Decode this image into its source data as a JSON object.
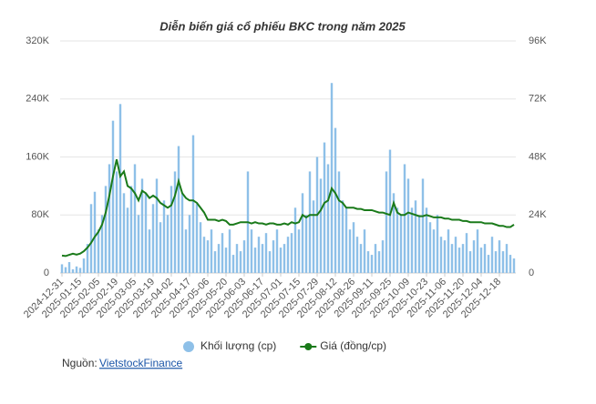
{
  "chart_data": {
    "type": "bar-line",
    "title": "Diễn biến giá cổ phiếu BKC trong năm 2025",
    "categories": [
      "2024-12-31",
      null,
      null,
      null,
      null,
      "2025-01-15",
      null,
      null,
      null,
      null,
      "2025-02-05",
      null,
      null,
      null,
      null,
      "2025-02-19",
      null,
      null,
      null,
      null,
      "2025-03-05",
      null,
      null,
      null,
      null,
      "2025-03-19",
      null,
      null,
      null,
      null,
      "2025-04-02",
      null,
      null,
      null,
      null,
      "2025-04-17",
      null,
      null,
      null,
      null,
      "2025-05-06",
      null,
      null,
      null,
      null,
      "2025-05-20",
      null,
      null,
      null,
      null,
      "2025-06-03",
      null,
      null,
      null,
      null,
      "2025-06-17",
      null,
      null,
      null,
      null,
      "2025-07-01",
      null,
      null,
      null,
      null,
      "2025-07-15",
      null,
      null,
      null,
      null,
      "2025-07-29",
      null,
      null,
      null,
      null,
      "2025-08-12",
      null,
      null,
      null,
      null,
      "2025-08-26",
      null,
      null,
      null,
      null,
      "2025-09-11",
      null,
      null,
      null,
      null,
      "2025-09-25",
      null,
      null,
      null,
      null,
      "2025-10-09",
      null,
      null,
      null,
      null,
      "2025-10-23",
      null,
      null,
      null,
      null,
      "2025-11-06",
      null,
      null,
      null,
      null,
      "2025-11-20",
      null,
      null,
      null,
      null,
      "2025-12-04",
      null,
      null,
      null,
      null,
      "2025-12-18",
      null,
      null,
      null,
      null
    ],
    "series": [
      {
        "name": "Khối lượng (cp)",
        "type": "bar",
        "color": "#8ec0e8",
        "values": [
          12000,
          8000,
          15000,
          5000,
          9000,
          7000,
          20000,
          40000,
          95000,
          112000,
          60000,
          80000,
          120000,
          150000,
          210000,
          140000,
          233000,
          110000,
          90000,
          120000,
          150000,
          80000,
          130000,
          110000,
          60000,
          95000,
          130000,
          70000,
          100000,
          80000,
          120000,
          140000,
          175000,
          110000,
          60000,
          80000,
          190000,
          95000,
          70000,
          50000,
          45000,
          60000,
          30000,
          40000,
          55000,
          35000,
          60000,
          25000,
          40000,
          30000,
          45000,
          140000,
          60000,
          35000,
          50000,
          40000,
          55000,
          30000,
          45000,
          60000,
          35000,
          40000,
          50000,
          55000,
          90000,
          60000,
          110000,
          80000,
          140000,
          100000,
          160000,
          130000,
          180000,
          150000,
          262000,
          200000,
          140000,
          100000,
          90000,
          60000,
          70000,
          50000,
          40000,
          60000,
          30000,
          25000,
          40000,
          30000,
          45000,
          140000,
          170000,
          110000,
          90000,
          80000,
          150000,
          130000,
          90000,
          100000,
          80000,
          130000,
          90000,
          70000,
          60000,
          80000,
          50000,
          45000,
          60000,
          40000,
          50000,
          35000,
          40000,
          55000,
          30000,
          45000,
          60000,
          35000,
          40000,
          25000,
          50000,
          30000,
          45000,
          30000,
          40000,
          25000,
          20000
        ]
      },
      {
        "name": "Giá (đồng/cp)",
        "type": "line",
        "axis": "y2",
        "color": "#1a7a1a",
        "values": [
          7200,
          7000,
          7500,
          8000,
          7600,
          8000,
          9000,
          10500,
          12500,
          15000,
          17000,
          20000,
          25000,
          32000,
          40000,
          47000,
          40000,
          42000,
          36000,
          35000,
          33000,
          30000,
          34000,
          33000,
          31000,
          32000,
          31000,
          29000,
          28000,
          27000,
          28000,
          32000,
          38000,
          33000,
          31000,
          30000,
          30000,
          29000,
          27000,
          25000,
          22000,
          22000,
          22000,
          21500,
          22000,
          21500,
          20000,
          20000,
          20500,
          21000,
          21000,
          21000,
          20500,
          21000,
          20500,
          20500,
          20000,
          20500,
          20500,
          20000,
          20000,
          20500,
          20000,
          21000,
          20500,
          21000,
          24000,
          23000,
          24000,
          24000,
          24000,
          26000,
          29000,
          30000,
          35000,
          33000,
          30000,
          29000,
          27000,
          27000,
          27000,
          26500,
          26500,
          26000,
          26000,
          26000,
          25500,
          25000,
          25000,
          24500,
          24000,
          29000,
          25000,
          24000,
          24000,
          25000,
          24500,
          24000,
          23500,
          23500,
          24000,
          23500,
          23000,
          23000,
          23000,
          22500,
          22500,
          22000,
          22000,
          22000,
          21500,
          21500,
          21000,
          21000,
          21000,
          21000,
          20500,
          20500,
          20500,
          20000,
          19500,
          19500,
          19000,
          19000,
          20000
        ]
      }
    ],
    "ylim": [
      0,
      320000
    ],
    "yticks": [
      0,
      {
        "value": 80000,
        "label": "80K"
      },
      {
        "value": 160000,
        "label": "160K"
      },
      {
        "value": 240000,
        "label": "240K"
      },
      {
        "value": 320000,
        "label": "320K"
      }
    ],
    "y2lim": [
      0,
      96000
    ],
    "y2ticks": [
      0,
      {
        "value": 24000,
        "label": "24K"
      },
      {
        "value": 48000,
        "label": "48K"
      },
      {
        "value": 72000,
        "label": "72K"
      },
      {
        "value": 96000,
        "label": "96K"
      }
    ],
    "grid": true,
    "legend": "bottom",
    "source_label": "Nguồn:",
    "source_link": "VietstockFinance"
  }
}
